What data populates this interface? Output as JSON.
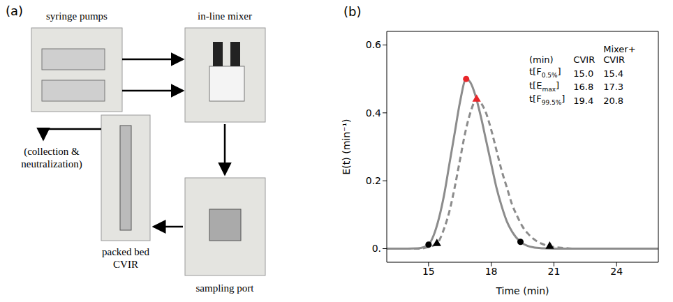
{
  "diagram": {
    "label": "(a)",
    "nodes": [
      {
        "label_lines": [
          "syringe pumps"
        ]
      },
      {
        "label_lines": [
          "in-line mixer"
        ]
      },
      {
        "label_lines": [
          "sampling port"
        ]
      },
      {
        "label_lines": [
          "packed bed",
          "CVIR"
        ]
      }
    ],
    "output": {
      "label_lines": [
        "(collection &",
        "neutralization)"
      ]
    }
  },
  "chart_data": {
    "type": "line",
    "panel_label": "(b)",
    "x_label": "Time (min)",
    "y_label": "E(t) (min⁻¹)",
    "xlim": [
      13,
      26
    ],
    "xticks": [
      15,
      18,
      21,
      24
    ],
    "ylim": [
      -0.04,
      0.64
    ],
    "yticks": [
      {
        "value": 0,
        "label": "0."
      },
      0.2,
      0.4,
      0.6
    ],
    "grid": false,
    "series": [
      {
        "name": "CVIR",
        "color": "#8c8c8c",
        "line_style": "solid",
        "marker": "circle",
        "x": [
          13,
          14,
          14.5,
          15,
          15.25,
          15.5,
          15.75,
          16,
          16.25,
          16.5,
          16.8,
          17,
          17.25,
          17.5,
          17.75,
          18,
          18.25,
          18.5,
          18.75,
          19,
          19.4,
          19.75,
          20,
          20.5,
          21,
          22,
          26
        ],
        "values": [
          0,
          0,
          0.001,
          0.012,
          0.04,
          0.09,
          0.16,
          0.25,
          0.34,
          0.43,
          0.5,
          0.49,
          0.45,
          0.39,
          0.32,
          0.25,
          0.18,
          0.125,
          0.08,
          0.05,
          0.02,
          0.008,
          0.004,
          0.001,
          0,
          0,
          0
        ],
        "key_points": {
          "x": [
            15.0,
            16.8,
            19.4
          ],
          "y": [
            0.012,
            0.5,
            0.02
          ],
          "colors": [
            "#000000",
            "#e8262a",
            "#000000"
          ]
        }
      },
      {
        "name": "Mixer+CVIR",
        "color": "#8c8c8c",
        "line_style": "dashed",
        "marker": "triangle",
        "x": [
          13,
          14.5,
          15,
          15.4,
          15.75,
          16,
          16.25,
          16.5,
          16.75,
          17,
          17.3,
          17.5,
          17.75,
          18,
          18.25,
          18.5,
          18.75,
          19,
          19.25,
          19.5,
          19.75,
          20,
          20.4,
          20.8,
          21.5,
          22,
          26
        ],
        "values": [
          0,
          0,
          0.005,
          0.015,
          0.06,
          0.11,
          0.18,
          0.26,
          0.34,
          0.4,
          0.44,
          0.43,
          0.4,
          0.35,
          0.29,
          0.23,
          0.18,
          0.13,
          0.095,
          0.065,
          0.045,
          0.03,
          0.015,
          0.007,
          0.002,
          0,
          0
        ],
        "key_points": {
          "x": [
            15.4,
            17.3,
            20.8
          ],
          "y": [
            0.015,
            0.44,
            0.007
          ],
          "colors": [
            "#000000",
            "#e8262a",
            "#000000"
          ]
        }
      }
    ],
    "table": {
      "header": [
        "(min)",
        "CVIR",
        "Mixer+CVIR"
      ],
      "rows": [
        {
          "label": [
            "t[F",
            "0.5%",
            "]"
          ],
          "cells": [
            "15.0",
            "15.4"
          ]
        },
        {
          "label": [
            "t[E",
            "max",
            "]"
          ],
          "cells": [
            "16.8",
            "17.3"
          ]
        },
        {
          "label": [
            "t[F",
            "99.5%",
            "]"
          ],
          "cells": [
            "19.4",
            "20.8"
          ]
        }
      ]
    }
  }
}
